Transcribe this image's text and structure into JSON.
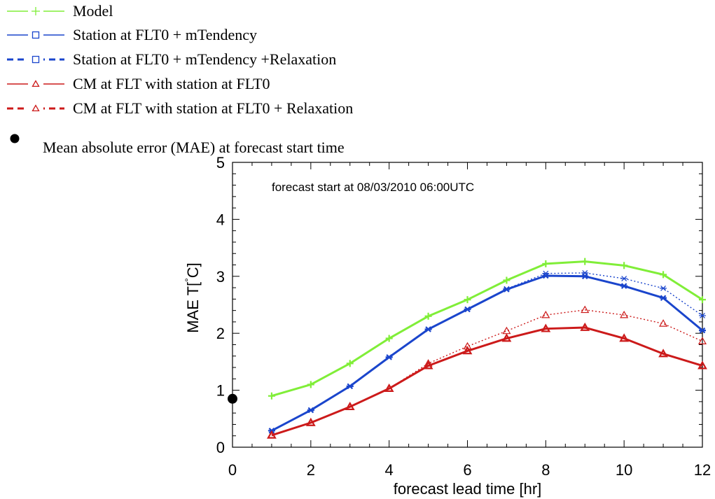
{
  "legend": {
    "items": [
      {
        "label": "Model",
        "color": "#80ee38",
        "style": "solid",
        "marker": "plus"
      },
      {
        "label": "Station at FLT0  + mTendency",
        "color": "#1a45cc",
        "style": "solid",
        "marker": "square"
      },
      {
        "label": "Station at FLT0  + mTendency +Relaxation",
        "color": "#1a45cc",
        "style": "dashed",
        "marker": "square"
      },
      {
        "label": "CM at FLT with station at FLT0",
        "color": "#cc1a1a",
        "style": "solid",
        "marker": "triangle"
      },
      {
        "label": "CM at FLT with station at FLT0 + Relaxation",
        "color": "#cc1a1a",
        "style": "dashed",
        "marker": "triangle"
      }
    ],
    "dot_label": "Mean absolute error (MAE) at forecast start time"
  },
  "chart_data": {
    "type": "line",
    "annotation": "forecast start at 08/03/2010 06:00UTC",
    "xlabel": "forecast lead time [hr]",
    "ylabel_main": "MAE T[",
    "ylabel_degree": "°",
    "ylabel_unit": "C]",
    "xlim": [
      0,
      12
    ],
    "ylim": [
      0,
      5
    ],
    "x_ticks": [
      "0",
      "2",
      "4",
      "6",
      "8",
      "10",
      "12"
    ],
    "y_ticks": [
      "0",
      "1",
      "2",
      "3",
      "4",
      "5"
    ],
    "x_tick_values": [
      0,
      2,
      4,
      6,
      8,
      10,
      12
    ],
    "y_tick_values": [
      0,
      1,
      2,
      3,
      4,
      5
    ],
    "grid": false,
    "x": [
      1,
      2,
      3,
      4,
      5,
      6,
      7,
      8,
      9,
      10,
      11,
      12
    ],
    "series": [
      {
        "name": "Model",
        "color": "#80ee38",
        "style": "solid",
        "marker": "plus",
        "values": [
          0.9,
          1.1,
          1.47,
          1.91,
          2.3,
          2.59,
          2.93,
          3.22,
          3.26,
          3.19,
          3.03,
          2.59
        ]
      },
      {
        "name": "Station at FLT0  + mTendency +Relaxation",
        "color": "#1a45cc",
        "style": "dotted",
        "marker": "asterisk",
        "values": [
          0.29,
          0.65,
          1.07,
          1.58,
          2.07,
          2.42,
          2.78,
          3.05,
          3.06,
          2.96,
          2.79,
          2.31
        ]
      },
      {
        "name": "Station at FLT0  + mTendency",
        "color": "#1a45cc",
        "style": "solid",
        "marker": "asterisk",
        "values": [
          0.29,
          0.65,
          1.07,
          1.58,
          2.07,
          2.42,
          2.77,
          3.01,
          3.0,
          2.83,
          2.62,
          2.05
        ]
      },
      {
        "name": "CM at FLT with station at FLT0 + Relaxation",
        "color": "#cc1a1a",
        "style": "dotted",
        "marker": "triangle",
        "values": [
          0.21,
          0.43,
          0.71,
          1.03,
          1.47,
          1.77,
          2.04,
          2.32,
          2.41,
          2.32,
          2.17,
          1.86
        ]
      },
      {
        "name": "CM at FLT with station at FLT0",
        "color": "#cc1a1a",
        "style": "solid",
        "marker": "triangle",
        "values": [
          0.21,
          0.43,
          0.71,
          1.03,
          1.43,
          1.69,
          1.91,
          2.08,
          2.1,
          1.91,
          1.64,
          1.43
        ]
      }
    ],
    "start_point": {
      "x": 0,
      "y": 0.85,
      "color": "#000000"
    }
  }
}
